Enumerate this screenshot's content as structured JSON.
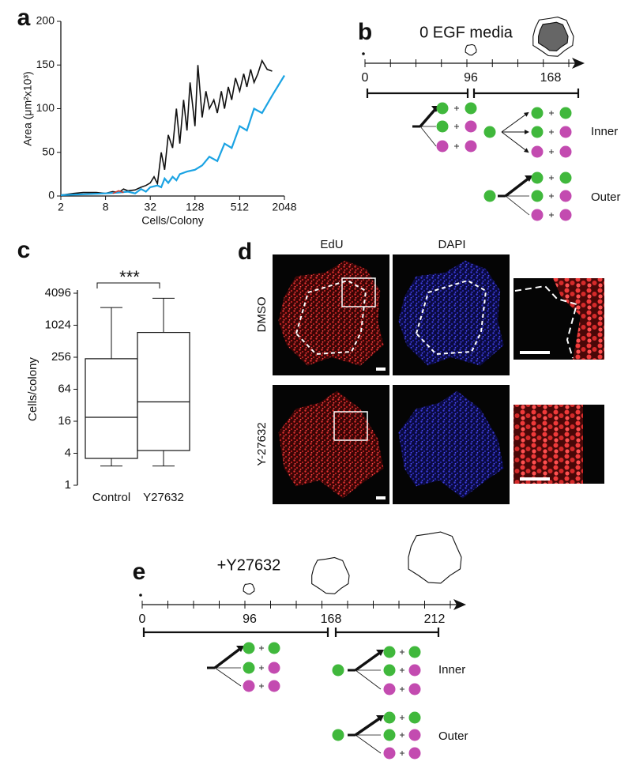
{
  "panel_labels": [
    "a",
    "b",
    "c",
    "d",
    "e"
  ],
  "chart_data": [
    {
      "type": "line",
      "xlabel": "Cells/Colony",
      "ylabel": "Area (μm²x10³)",
      "xlim": [
        2,
        2048
      ],
      "xticks": [
        2,
        8,
        32,
        128,
        512,
        2048
      ],
      "x_log_base": 2,
      "ylim": [
        0,
        200
      ],
      "yticks": [
        0,
        50,
        100,
        150,
        200
      ],
      "series": [
        {
          "color": "#111111",
          "x": [
            2,
            3,
            4,
            6,
            8,
            10,
            12,
            14,
            16,
            20,
            24,
            28,
            32,
            36,
            40,
            45,
            50,
            56,
            64,
            72,
            80,
            90,
            100,
            110,
            128,
            140,
            160,
            180,
            200,
            230,
            256,
            290,
            320,
            360,
            400,
            450,
            512,
            580,
            640,
            720,
            800,
            900,
            1024,
            1200,
            1400
          ],
          "values": [
            1,
            3,
            4,
            4,
            3,
            5,
            4,
            8,
            6,
            7,
            10,
            12,
            15,
            22,
            14,
            50,
            30,
            70,
            55,
            100,
            60,
            110,
            75,
            130,
            80,
            150,
            90,
            120,
            100,
            110,
            95,
            120,
            100,
            125,
            110,
            135,
            120,
            140,
            125,
            145,
            130,
            140,
            155,
            145,
            143
          ]
        },
        {
          "color": "#1ba3e3",
          "x": [
            2,
            4,
            8,
            12,
            16,
            20,
            24,
            28,
            32,
            40,
            45,
            50,
            56,
            64,
            72,
            80,
            100,
            128,
            160,
            200,
            256,
            320,
            400,
            512,
            640,
            800,
            1024,
            1400,
            2048
          ],
          "values": [
            1,
            2,
            3,
            4,
            5,
            3,
            8,
            5,
            10,
            12,
            10,
            20,
            15,
            22,
            18,
            25,
            28,
            30,
            35,
            45,
            40,
            60,
            55,
            80,
            75,
            100,
            95,
            115,
            138
          ]
        },
        {
          "color": "#d03a2f",
          "x": [
            10,
            12,
            14
          ],
          "values": [
            3,
            6,
            4
          ]
        }
      ]
    },
    {
      "type": "box",
      "ylabel": "Cells/colony",
      "annotation": "***",
      "categories": [
        "Control",
        "Y27632"
      ],
      "boxes": [
        {
          "min": 2.3,
          "q1": 3.2,
          "median": 19,
          "q3": 240,
          "max": 2200
        },
        {
          "min": 2.3,
          "q1": 4.5,
          "median": 37,
          "q3": 750,
          "max": 3300
        }
      ],
      "ylim": [
        1,
        4096
      ],
      "yticks": [
        1,
        4,
        16,
        64,
        256,
        1024,
        4096
      ],
      "y_log_base": 2
    }
  ],
  "panel_b": {
    "title": "0 EGF media",
    "time_ticks": [
      "0",
      "96",
      "168"
    ],
    "groups": [
      "Inner",
      "Outer"
    ]
  },
  "panel_d": {
    "columns": [
      "EdU",
      "DAPI"
    ],
    "rows": [
      "DMSO",
      "Y-27632"
    ]
  },
  "panel_e": {
    "title": "+Y27632",
    "time_ticks": [
      "0",
      "96",
      "168",
      "212"
    ],
    "groups": [
      "Inner",
      "Outer"
    ]
  }
}
